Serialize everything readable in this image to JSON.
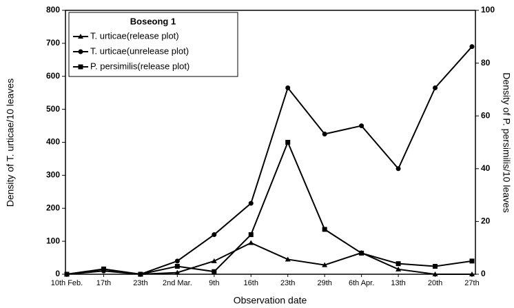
{
  "chart_data": {
    "type": "line",
    "legend_title": "Boseong 1",
    "x_label": "Observation date",
    "y_label": "Density of T. urticae/10 leaves",
    "y2_label": "Density of P. persimilis/10 leaves",
    "categories": [
      "10th Feb.",
      "17th",
      "23th",
      "2nd Mar.",
      "9th",
      "16th",
      "23th",
      "29th",
      "6th Apr.",
      "13th",
      "20th",
      "27th"
    ],
    "series": [
      {
        "name": "T. urticae(release plot)",
        "color": "#000000",
        "marker": "triangle",
        "values": [
          0,
          15,
          0,
          5,
          40,
          95,
          45,
          28,
          65,
          15,
          0,
          0
        ]
      },
      {
        "name": "T. urticae(unrelease plot)",
        "color": "#000000",
        "marker": "circle",
        "values": [
          0,
          10,
          0,
          40,
          120,
          215,
          565,
          425,
          450,
          320,
          565,
          690
        ]
      },
      {
        "name": "P. persimilis(release plot)",
        "color": "#000000",
        "marker": "square",
        "axis": "y2",
        "values": [
          0,
          2,
          0,
          3,
          1,
          15,
          50,
          17,
          8,
          4,
          3,
          5
        ]
      }
    ],
    "ylim": [
      0,
      800
    ],
    "yticks": [
      0,
      100,
      200,
      300,
      400,
      500,
      600,
      700,
      800
    ],
    "y2lim": [
      0,
      100
    ],
    "y2ticks": [
      0,
      20,
      40,
      60,
      80,
      100
    ]
  }
}
